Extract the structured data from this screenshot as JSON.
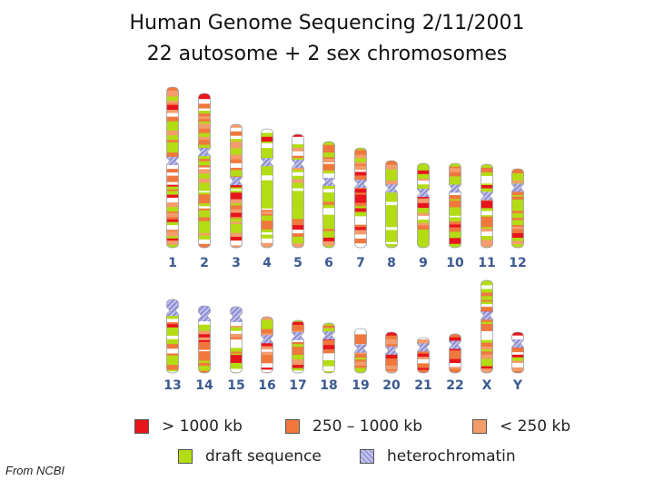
{
  "title_line1": "Human Genome Sequencing 2/11/2001",
  "title_line2": "22 autosome  + 2 sex chromosomes",
  "credit": "From NCBI",
  "colors": {
    "over_1000kb": "#e8141c",
    "range_250_1000kb": "#f0783c",
    "under_250kb": "#f49c6c",
    "draft_sequence": "#b4dc14",
    "heterochromatin": "#9898d8"
  },
  "legend": [
    {
      "label": "> 1000 kb",
      "color": "#e8141c"
    },
    {
      "label": "250 – 1000 kb",
      "color": "#f0783c"
    },
    {
      "label": "< 250 kb",
      "color": "#f49c6c"
    },
    {
      "label": "draft sequence",
      "color": "#b4dc14"
    },
    {
      "label": "heterochromatin",
      "color": "#9898d8"
    }
  ],
  "rows": [
    {
      "chromosomes": [
        {
          "label": "1",
          "p_arm": 0.46,
          "q_arm": 0.54,
          "length": 1.0,
          "draft_share": 0.35
        },
        {
          "label": "2",
          "p_arm": 0.38,
          "q_arm": 0.62,
          "length": 0.98,
          "draft_share": 0.45
        },
        {
          "label": "3",
          "p_arm": 0.46,
          "q_arm": 0.54,
          "length": 0.8,
          "draft_share": 0.4
        },
        {
          "label": "4",
          "p_arm": 0.28,
          "q_arm": 0.72,
          "length": 0.76,
          "draft_share": 0.75
        },
        {
          "label": "5",
          "p_arm": 0.26,
          "q_arm": 0.74,
          "length": 0.73,
          "draft_share": 0.55
        },
        {
          "label": "6",
          "p_arm": 0.38,
          "q_arm": 0.62,
          "length": 0.69,
          "draft_share": 0.45
        },
        {
          "label": "7",
          "p_arm": 0.36,
          "q_arm": 0.64,
          "length": 0.64,
          "draft_share": 0.1
        },
        {
          "label": "8",
          "p_arm": 0.32,
          "q_arm": 0.68,
          "length": 0.58,
          "draft_share": 0.7
        },
        {
          "label": "9",
          "p_arm": 0.35,
          "q_arm": 0.65,
          "length": 0.56,
          "draft_share": 0.55
        },
        {
          "label": "10",
          "p_arm": 0.3,
          "q_arm": 0.7,
          "length": 0.55,
          "draft_share": 0.45
        },
        {
          "label": "11",
          "p_arm": 0.38,
          "q_arm": 0.62,
          "length": 0.55,
          "draft_share": 0.4
        },
        {
          "label": "12",
          "p_arm": 0.24,
          "q_arm": 0.76,
          "length": 0.53,
          "draft_share": 0.35
        }
      ]
    },
    {
      "chromosomes": [
        {
          "label": "13",
          "p_arm": 0.15,
          "q_arm": 0.85,
          "length": 0.42,
          "draft_share": 0.35
        },
        {
          "label": "14",
          "p_arm": 0.15,
          "q_arm": 0.85,
          "length": 0.4,
          "draft_share": 0.3
        },
        {
          "label": "15",
          "p_arm": 0.15,
          "q_arm": 0.85,
          "length": 0.4,
          "draft_share": 0.5
        },
        {
          "label": "16",
          "p_arm": 0.4,
          "q_arm": 0.6,
          "length": 0.34,
          "draft_share": 0.2
        },
        {
          "label": "17",
          "p_arm": 0.3,
          "q_arm": 0.7,
          "length": 0.32,
          "draft_share": 0.25
        },
        {
          "label": "18",
          "p_arm": 0.25,
          "q_arm": 0.75,
          "length": 0.31,
          "draft_share": 0.55
        },
        {
          "label": "19",
          "p_arm": 0.45,
          "q_arm": 0.55,
          "length": 0.26,
          "draft_share": 0.1
        },
        {
          "label": "20",
          "p_arm": 0.45,
          "q_arm": 0.55,
          "length": 0.25,
          "draft_share": 0.05
        },
        {
          "label": "21",
          "p_arm": 0.28,
          "q_arm": 0.72,
          "length": 0.18,
          "draft_share": 0.0
        },
        {
          "label": "22",
          "p_arm": 0.28,
          "q_arm": 0.72,
          "length": 0.19,
          "draft_share": 0.0
        },
        {
          "label": "X",
          "p_arm": 0.38,
          "q_arm": 0.62,
          "length": 0.56,
          "draft_share": 0.35
        },
        {
          "label": "Y",
          "p_arm": 0.28,
          "q_arm": 0.72,
          "length": 0.2,
          "draft_share": 0.15
        }
      ]
    }
  ]
}
